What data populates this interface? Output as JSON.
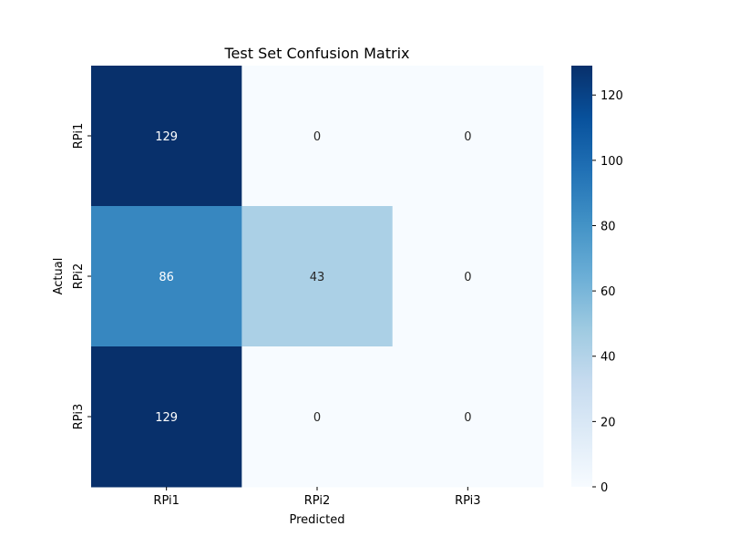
{
  "chart_data": {
    "type": "heatmap",
    "title": "Test Set Confusion Matrix",
    "xlabel": "Predicted",
    "ylabel": "Actual",
    "x_categories": [
      "RPi1",
      "RPi2",
      "RPi3"
    ],
    "y_categories": [
      "RPi1",
      "RPi2",
      "RPi3"
    ],
    "values": [
      [
        129,
        0,
        0
      ],
      [
        86,
        43,
        0
      ],
      [
        129,
        0,
        0
      ]
    ],
    "colorbar": {
      "min": 0,
      "max": 129,
      "ticks": [
        0,
        20,
        40,
        60,
        80,
        100,
        120
      ]
    },
    "colormap": "Blues",
    "colors": {
      "low": "#f7fbff",
      "high": "#08306b",
      "text_on_dark": "#ffffff",
      "text_on_light": "#262626"
    }
  }
}
